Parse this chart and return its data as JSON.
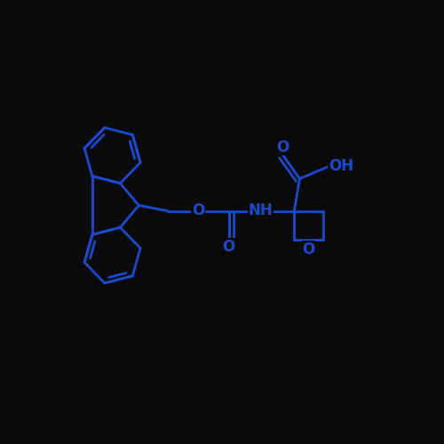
{
  "background_color": "#0a0a0a",
  "bond_color": "#1a4acd",
  "text_color": "#1a4acd",
  "line_width": 2.0,
  "figsize": [
    5.0,
    5.0
  ],
  "dpi": 100,
  "xlim": [
    -4.5,
    3.5
  ],
  "ylim": [
    -3.0,
    3.0
  ]
}
